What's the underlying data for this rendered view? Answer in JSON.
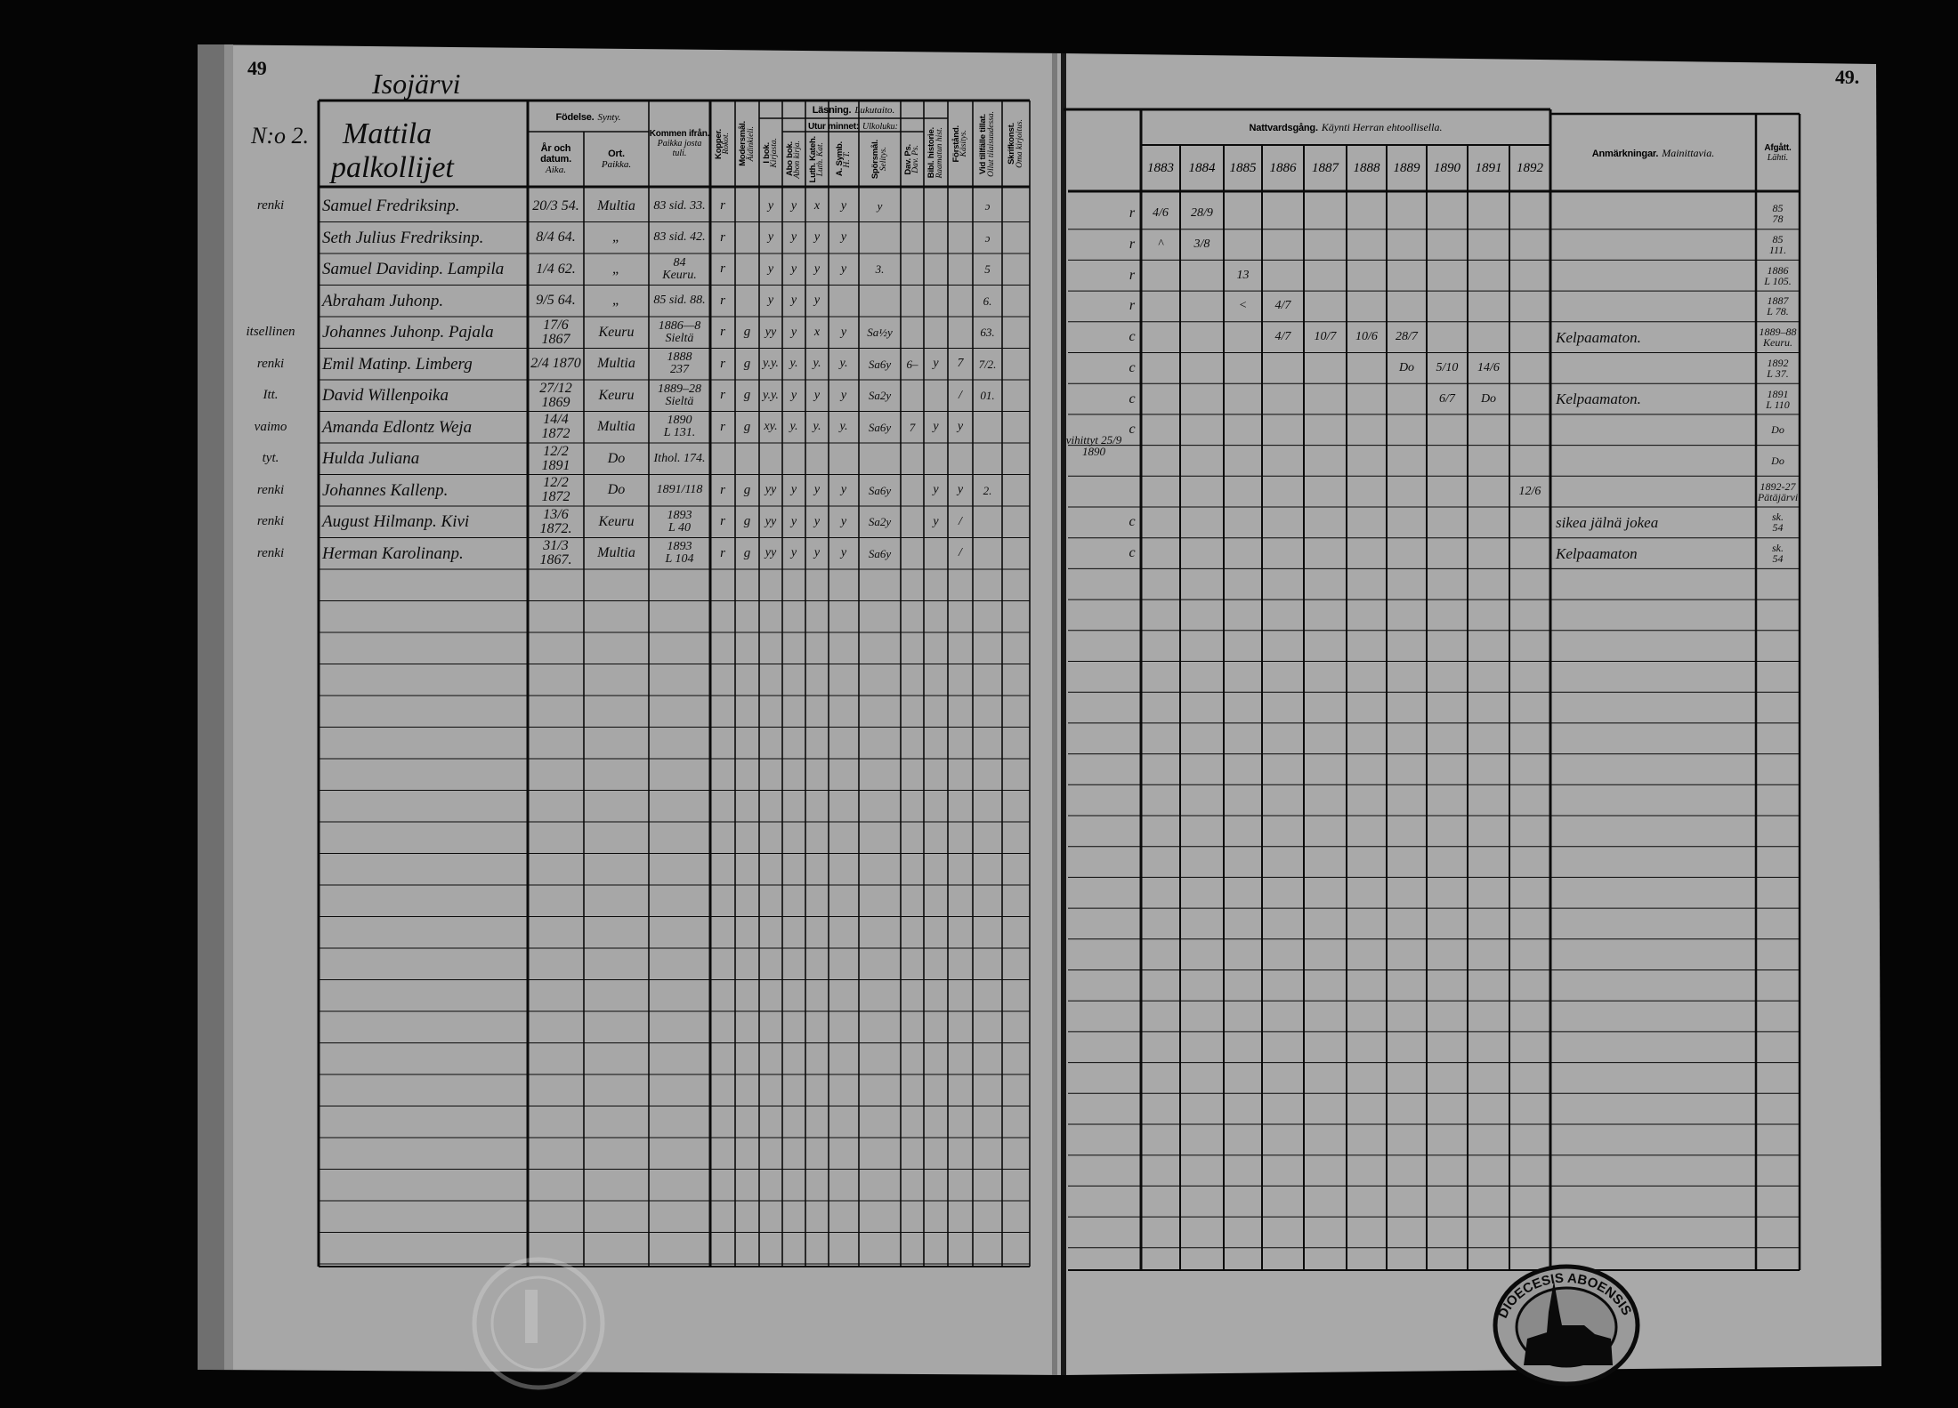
{
  "colors": {
    "page": "#a7a7a7",
    "ink": "#0c0c0c",
    "background": "#050505"
  },
  "left_page": {
    "page_number": "49",
    "village": "Isojärvi",
    "household_no": "N:o 2.",
    "household_name": "Mattila",
    "household_sub": "palkollijet",
    "headers": {
      "fodelse": "Födelse.",
      "fodelse_fi": "Synty.",
      "ar": "År och datum.",
      "ar_fi": "Aika.",
      "ort": "Ort.",
      "ort_fi": "Paikka.",
      "kommen": "Kommen ifrån.",
      "kommen_fi": "Paikka josta tuli.",
      "kopper": "Kopper.",
      "kopper_fi": "Rokot.",
      "modersmal": "Modersmål.",
      "modersmal_fi": "Äidinkieli.",
      "lasning": "Läsning.",
      "lasning_fi": "Lukutaito.",
      "ibok": "I bok.",
      "ibok_fi": "Kirjasta.",
      "utur": "Utur minnet:",
      "utur_fi": "Ulkoluku:",
      "abo": "Abo bok.",
      "abo_fi": "Abon kirja.",
      "luth": "Luth. Kateh.",
      "luth_fi": "Luth. Kat.",
      "asymb": "A. Symb.",
      "asymb_fi": "H. T.",
      "sporsmal": "Spörsmål.",
      "sporsmal_fi": "Selitys.",
      "davps": "Dav. Ps.",
      "davps_fi": "Dav. Ps.",
      "bibl": "Bibl. historie.",
      "bibl_fi": "Raamatun hist.",
      "forstand": "Förstånd.",
      "forstand_fi": "Käsitys.",
      "vid": "Vid tillfälle tillat.",
      "vid_fi": "Ollut tilaisuudessa.",
      "skrift": "Skrifkonst.",
      "skrift_fi": "Oma kirjoitus."
    }
  },
  "right_page": {
    "page_number": "49.",
    "headers": {
      "nattvard": "Nattvardsgång.",
      "nattvard_fi": "Käynti Herran ehtoollisella.",
      "years": [
        "1883",
        "1884",
        "1885",
        "1886",
        "1887",
        "1888",
        "1889",
        "1890",
        "1891",
        "1892"
      ],
      "anm": "Anmärkningar.",
      "anm_fi": "Mainittavia.",
      "afgatt": "Afgått.",
      "afgatt_fi": "Lähti."
    },
    "stamp_text": "DIOECESIS ABOENSIS"
  },
  "rows": [
    {
      "role": "renki",
      "name": "Samuel Fredriksinp.",
      "born": "20/3 54.",
      "place": "Multia",
      "came_from": [
        "83 sid. 33."
      ],
      "kopper": "r",
      "modersmal": "",
      "ibok": "y",
      "abo": "y",
      "luth": "x",
      "asymb": "y",
      "sporsmal": "y",
      "davps": "",
      "bibl": "",
      "forstand": "",
      "vid": "ɔ",
      "skrift": "",
      "note": "",
      "mark": "r",
      "communion": [
        "4/6",
        "28/9",
        "",
        "",
        "",
        "",
        "",
        "",
        "",
        ""
      ],
      "remarks": "",
      "departed": [
        "85",
        "78"
      ]
    },
    {
      "role": "",
      "name": "Seth Julius Fredriksinp.",
      "born": "8/4 64.",
      "place": "„",
      "came_from": [
        "83 sid. 42."
      ],
      "kopper": "r",
      "modersmal": "",
      "ibok": "y",
      "abo": "y",
      "luth": "y",
      "asymb": "y",
      "sporsmal": "",
      "davps": "",
      "bibl": "",
      "forstand": "",
      "vid": "ɔ",
      "skrift": "",
      "note": "",
      "mark": "r",
      "communion": [
        "^",
        "3/8",
        "",
        "",
        "",
        "",
        "",
        "",
        "",
        ""
      ],
      "remarks": "",
      "departed": [
        "85",
        "111."
      ]
    },
    {
      "role": "",
      "name": "Samuel Davidinp. Lampila",
      "born": "1/4 62.",
      "place": "„",
      "came_from": [
        "84",
        "Keuru."
      ],
      "kopper": "r",
      "modersmal": "",
      "ibok": "y",
      "abo": "y",
      "luth": "y",
      "asymb": "y",
      "sporsmal": "3.",
      "davps": "",
      "bibl": "",
      "forstand": "",
      "vid": "5",
      "skrift": "",
      "note": "",
      "mark": "r",
      "communion": [
        "",
        "",
        "13",
        "",
        "",
        "",
        "",
        "",
        "",
        ""
      ],
      "remarks": "",
      "departed": [
        "1886",
        "L 105."
      ]
    },
    {
      "role": "",
      "name": "Abraham Juhonp.",
      "born": "9/5 64.",
      "place": "„",
      "came_from": [
        "85 sid. 88."
      ],
      "kopper": "r",
      "modersmal": "",
      "ibok": "y",
      "abo": "y",
      "luth": "y",
      "asymb": "",
      "sporsmal": "",
      "davps": "",
      "bibl": "",
      "forstand": "",
      "vid": "6.",
      "skrift": "",
      "note": "",
      "mark": "r",
      "communion": [
        "",
        "",
        "<",
        "4/7",
        "",
        "",
        "",
        "",
        "",
        ""
      ],
      "remarks": "",
      "departed": [
        "1887",
        "L 78."
      ]
    },
    {
      "role": "itsellinen",
      "name": "Johannes Juhonp. Pajala",
      "born": "17/6 1867",
      "place": "Keuru",
      "came_from": [
        "1886—8",
        "Sieltä"
      ],
      "kopper": "r",
      "modersmal": "g",
      "ibok": "yy",
      "abo": "y",
      "luth": "x",
      "asymb": "y",
      "sporsmal": "Sa½y",
      "davps": "",
      "bibl": "",
      "forstand": "",
      "vid": "63.",
      "skrift": "",
      "note": "",
      "mark": "c",
      "communion": [
        "",
        "",
        "",
        "4/7",
        "10/7",
        "10/6",
        "28/7",
        "",
        "",
        ""
      ],
      "remarks": "Kelpaamaton.",
      "departed": [
        "1889–88",
        "Keuru."
      ]
    },
    {
      "role": "renki",
      "name": "Emil Matinp. Limberg",
      "born": "2/4 1870",
      "place": "Multia",
      "came_from": [
        "1888",
        "237"
      ],
      "kopper": "r",
      "modersmal": "g",
      "ibok": "y.y.",
      "abo": "y.",
      "luth": "y.",
      "asymb": "y.",
      "sporsmal": "Sa6y",
      "davps": "6–",
      "bibl": "y",
      "forstand": "7",
      "vid": "7/2.",
      "skrift": "",
      "note": "",
      "mark": "c",
      "communion": [
        "",
        "",
        "",
        "",
        "",
        "",
        "Do",
        "5/10",
        "14/6",
        ""
      ],
      "remarks": "",
      "departed": [
        "1892",
        "L 37."
      ]
    },
    {
      "role": "Itt.",
      "name": "David Willenpoika",
      "born": "27/12 1869",
      "place": "Keuru",
      "came_from": [
        "1889–28",
        "Sieltä"
      ],
      "kopper": "r",
      "modersmal": "g",
      "ibok": "y.y.",
      "abo": "y",
      "luth": "y",
      "asymb": "y",
      "sporsmal": "Sa2y",
      "davps": "",
      "bibl": "",
      "forstand": "/",
      "vid": "01.",
      "skrift": "",
      "note": "",
      "mark": "c",
      "communion": [
        "",
        "",
        "",
        "",
        "",
        "",
        "",
        "6/7",
        "Do",
        ""
      ],
      "remarks": "Kelpaamaton.",
      "departed": [
        "1891",
        "L 110"
      ]
    },
    {
      "role": "vaimo",
      "name": "Amanda Edlontz Weja",
      "born": "14/4 1872",
      "place": "Multia",
      "came_from": [
        "1890",
        "L 131."
      ],
      "kopper": "r",
      "modersmal": "g",
      "ibok": "xy.",
      "abo": "y.",
      "luth": "y.",
      "asymb": "y.",
      "sporsmal": "Sa6y",
      "davps": "7",
      "bibl": "y",
      "forstand": "y",
      "vid": "",
      "skrift": "",
      "note": "vihittyt 25/9 1890",
      "mark": "c",
      "communion": [
        "",
        "",
        "",
        "",
        "",
        "",
        "",
        "",
        "",
        ""
      ],
      "remarks": "",
      "departed": [
        "Do"
      ]
    },
    {
      "role": "tyt.",
      "name": "Hulda Juliana",
      "born": "12/2 1891",
      "place": "Do",
      "came_from": [
        "Ithol. 174."
      ],
      "kopper": "",
      "modersmal": "",
      "ibok": "",
      "abo": "",
      "luth": "",
      "asymb": "",
      "sporsmal": "",
      "davps": "",
      "bibl": "",
      "forstand": "",
      "vid": "",
      "skrift": "",
      "note": "",
      "mark": "",
      "communion": [
        "",
        "",
        "",
        "",
        "",
        "",
        "",
        "",
        "",
        ""
      ],
      "remarks": "",
      "departed": [
        "Do"
      ]
    },
    {
      "role": "renki",
      "name": "Johannes Kallenp.",
      "born": "12/2 1872",
      "place": "Do",
      "came_from": [
        "1891/118"
      ],
      "kopper": "r",
      "modersmal": "g",
      "ibok": "yy",
      "abo": "y",
      "luth": "y",
      "asymb": "y",
      "sporsmal": "Sa6y",
      "davps": "",
      "bibl": "y",
      "forstand": "y",
      "vid": "2.",
      "skrift": "",
      "note": "",
      "mark": "",
      "communion": [
        "",
        "",
        "",
        "",
        "",
        "",
        "",
        "",
        "",
        "12/6"
      ],
      "remarks": "",
      "departed": [
        "1892-27",
        "Pätäjärvi"
      ]
    },
    {
      "role": "renki",
      "name": "August Hilmanp. Kivi",
      "born": "13/6 1872.",
      "place": "Keuru",
      "came_from": [
        "1893",
        "L 40"
      ],
      "kopper": "r",
      "modersmal": "g",
      "ibok": "yy",
      "abo": "y",
      "luth": "y",
      "asymb": "y",
      "sporsmal": "Sa2y",
      "davps": "",
      "bibl": "y",
      "forstand": "/",
      "vid": "",
      "skrift": "",
      "note": "",
      "mark": "c",
      "communion": [
        "",
        "",
        "",
        "",
        "",
        "",
        "",
        "",
        "",
        ""
      ],
      "remarks": "sikea jälnä jokea",
      "departed": [
        "sk.",
        "54"
      ]
    },
    {
      "role": "renki",
      "name": "Herman Karolinanp.",
      "born": "31/3 1867.",
      "place": "Multia",
      "came_from": [
        "1893",
        "L 104"
      ],
      "kopper": "r",
      "modersmal": "g",
      "ibok": "yy",
      "abo": "y",
      "luth": "y",
      "asymb": "y",
      "sporsmal": "Sa6y",
      "davps": "",
      "bibl": "",
      "forstand": "/",
      "vid": "",
      "skrift": "",
      "note": "",
      "mark": "c",
      "communion": [
        "",
        "",
        "",
        "",
        "",
        "",
        "",
        "",
        "",
        ""
      ],
      "remarks": "Kelpaamaton",
      "departed": [
        "sk.",
        "54"
      ]
    }
  ]
}
